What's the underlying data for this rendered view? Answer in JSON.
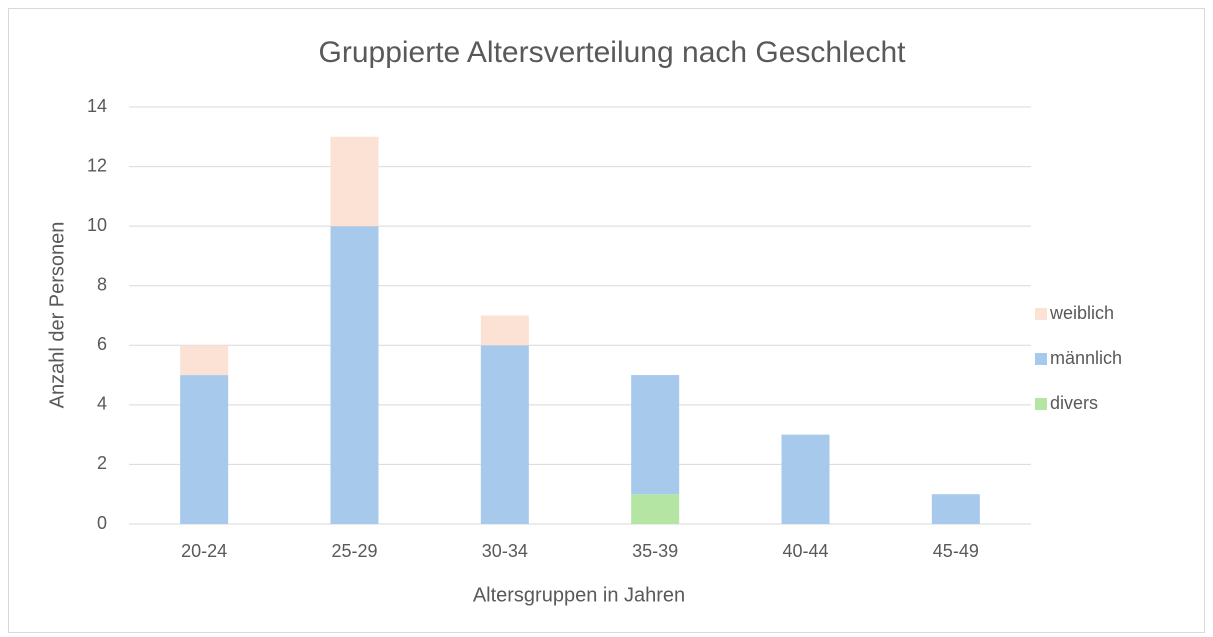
{
  "chart_data": {
    "type": "bar",
    "stacked": true,
    "title": "Gruppierte Altersverteilung nach Geschlecht",
    "x_label": "Altersgruppen in Jahren",
    "y_label": "Anzahl der Personen",
    "categories": [
      "20-24",
      "25-29",
      "30-34",
      "35-39",
      "40-44",
      "45-49"
    ],
    "series": [
      {
        "name": "divers",
        "color": "#b4e5a2",
        "values": [
          0,
          0,
          0,
          1,
          0,
          0
        ]
      },
      {
        "name": "männlich",
        "color": "#a6c9ec",
        "values": [
          5,
          10,
          6,
          4,
          3,
          1
        ]
      },
      {
        "name": "weiblich",
        "color": "#fbe2d5",
        "values": [
          1,
          3,
          1,
          0,
          0,
          0
        ]
      }
    ],
    "ylim": [
      0,
      14
    ],
    "yticks": [
      0,
      2,
      4,
      6,
      8,
      10,
      12,
      14
    ],
    "grid": true,
    "legend": "right"
  }
}
